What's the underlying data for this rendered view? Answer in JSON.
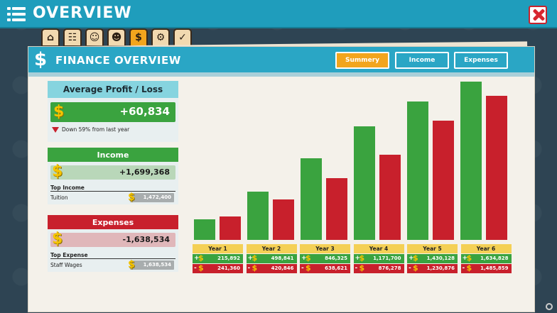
{
  "header": {
    "title": "OVERVIEW"
  },
  "category_tabs": [
    {
      "icon": "bank-icon",
      "glyph": "⌂"
    },
    {
      "icon": "book-icon",
      "glyph": "☷"
    },
    {
      "icon": "person-icon",
      "glyph": "☺"
    },
    {
      "icon": "people-icon",
      "glyph": "☻"
    },
    {
      "icon": "dollar-icon",
      "glyph": "$"
    },
    {
      "icon": "head-gear-icon",
      "glyph": "⚙"
    },
    {
      "icon": "folder-icon",
      "glyph": "✓"
    }
  ],
  "panel": {
    "title": "FINANCE OVERVIEW",
    "tabs": {
      "summary": "Summery",
      "income": "Income",
      "expenses": "Expenses"
    }
  },
  "average": {
    "header": "Average Profit / Loss",
    "value": "+60,834",
    "trend_text": "Down 59% from last year"
  },
  "income": {
    "header": "Income",
    "value": "+1,699,368",
    "top_label": "Top Income",
    "top_name": "Tuition",
    "top_value": "1,472,400"
  },
  "expenses": {
    "header": "Expenses",
    "value": "-1,638,534",
    "top_label": "Top Expense",
    "top_name": "Staff Wages",
    "top_value": "1,638,534"
  },
  "colors": {
    "income": "#3aa33f",
    "expense": "#c8202c",
    "accent": "#2aa6c5",
    "active_tab": "#f2a51d"
  },
  "chart_data": {
    "type": "bar",
    "categories": [
      "Year 1",
      "Year 2",
      "Year 3",
      "Year 4",
      "Year 5",
      "Year 6"
    ],
    "series": [
      {
        "values": [
          215892,
          498841,
          846325,
          1171700,
          1430128,
          1634828
        ]
      },
      {
        "values": [
          241360,
          420846,
          638621,
          876278,
          1230876,
          1485859
        ]
      }
    ],
    "ylim": [
      0,
      1700000
    ]
  },
  "years": [
    {
      "label": "Year 1",
      "income": "215,892",
      "expense": "241,360"
    },
    {
      "label": "Year 2",
      "income": "498,841",
      "expense": "420,846"
    },
    {
      "label": "Year 3",
      "income": "846,325",
      "expense": "638,621"
    },
    {
      "label": "Year 4",
      "income": "1,171,700",
      "expense": "876,278"
    },
    {
      "label": "Year 5",
      "income": "1,430,128",
      "expense": "1,230,876"
    },
    {
      "label": "Year 6",
      "income": "1,634,828",
      "expense": "1,485,859"
    }
  ]
}
